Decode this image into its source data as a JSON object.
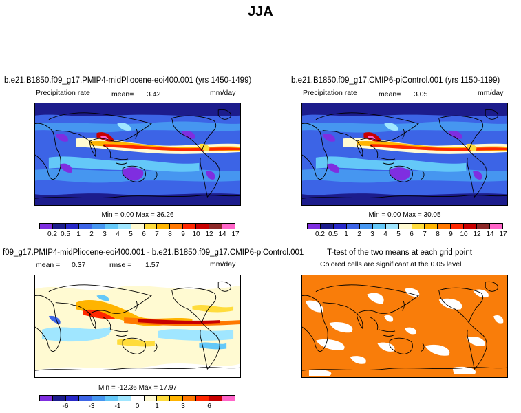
{
  "page_title": "JJA",
  "colors": {
    "precip_scale": [
      "#7f2ee0",
      "#1c1c8c",
      "#2828c8",
      "#3c64e6",
      "#4696f0",
      "#64c8f8",
      "#a0e6ff",
      "#fffad2",
      "#ffdc3c",
      "#ffb400",
      "#ff7800",
      "#ff2800",
      "#c80000",
      "#8c2828",
      "#ff64c8"
    ],
    "diff_scale": [
      "#7f2ee0",
      "#1c1c8c",
      "#2828c8",
      "#3c64e6",
      "#4696f0",
      "#64c8f8",
      "#a0e6ff",
      "#ffffff",
      "#fffad2",
      "#ffdc3c",
      "#ffb400",
      "#ff7800",
      "#ff2800",
      "#c80000",
      "#ff64c8"
    ],
    "significance": "#f97d0a",
    "land_outline": "#000000"
  },
  "panels": {
    "top_left": {
      "title": "b.e21.B1850.f09_g17.PMIP4-midPliocene-eoi400.001 (yrs 1450-1499)",
      "variable": "Precipitation rate",
      "mean_label": "mean=",
      "mean_value": "3.42",
      "units": "mm/day",
      "min_label": "Min =",
      "min_value": "0.00",
      "max_label": "Max =",
      "max_value": "36.26",
      "colorbar_labels": [
        "0.2",
        "0.5",
        "1",
        "2",
        "3",
        "4",
        "5",
        "6",
        "7",
        "8",
        "9",
        "10",
        "12",
        "14",
        "17"
      ]
    },
    "top_right": {
      "title": "b.e21.B1850.f09_g17.CMIP6-piControl.001 (yrs 1150-1199)",
      "variable": "Precipitation rate",
      "mean_label": "mean=",
      "mean_value": "3.05",
      "units": "mm/day",
      "min_label": "Min =",
      "min_value": "0.00",
      "max_label": "Max =",
      "max_value": "30.05",
      "colorbar_labels": [
        "0.2",
        "0.5",
        "1",
        "2",
        "3",
        "4",
        "5",
        "6",
        "7",
        "8",
        "9",
        "10",
        "12",
        "14",
        "17"
      ]
    },
    "bottom_left": {
      "title": "f09_g17.PMIP4-midPliocene-eoi400.001 - b.e21.B1850.f09_g17.CMIP6-piControl.001",
      "mean_label": "mean =",
      "mean_value": "0.37",
      "rmse_label": "rmse =",
      "rmse_value": "1.57",
      "units": "mm/day",
      "min_label": "Min =",
      "min_value": "-12.36",
      "max_label": "Max =",
      "max_value": "17.97",
      "colorbar_labels": [
        "-6",
        "-3",
        "-1",
        "0",
        "1",
        "3",
        "6"
      ]
    },
    "bottom_right": {
      "title": "T-test of the two means at each grid point",
      "subtitle": "Colored cells are significant at the 0.05 level"
    }
  },
  "chart_data": [
    {
      "type": "heatmap",
      "title": "b.e21.B1850.f09_g17.PMIP4-midPliocene-eoi400.001 (yrs 1450-1499)",
      "ylabel": "Precipitation rate",
      "units": "mm/day",
      "mean": 3.42,
      "min": 0.0,
      "max": 36.26,
      "levels": [
        0.2,
        0.5,
        1,
        2,
        3,
        4,
        5,
        6,
        7,
        8,
        9,
        10,
        12,
        14,
        17
      ]
    },
    {
      "type": "heatmap",
      "title": "b.e21.B1850.f09_g17.CMIP6-piControl.001 (yrs 1150-1199)",
      "ylabel": "Precipitation rate",
      "units": "mm/day",
      "mean": 3.05,
      "min": 0.0,
      "max": 30.05,
      "levels": [
        0.2,
        0.5,
        1,
        2,
        3,
        4,
        5,
        6,
        7,
        8,
        9,
        10,
        12,
        14,
        17
      ]
    },
    {
      "type": "heatmap",
      "title": "f09_g17.PMIP4-midPliocene-eoi400.001 - b.e21.B1850.f09_g17.CMIP6-piControl.001",
      "units": "mm/day",
      "mean": 0.37,
      "rmse": 1.57,
      "min": -12.36,
      "max": 17.97,
      "levels": [
        -6,
        -3,
        -1,
        0,
        1,
        3,
        6
      ]
    },
    {
      "type": "heatmap",
      "title": "T-test of the two means at each grid point",
      "subtitle": "Colored cells are significant at the 0.05 level"
    }
  ]
}
